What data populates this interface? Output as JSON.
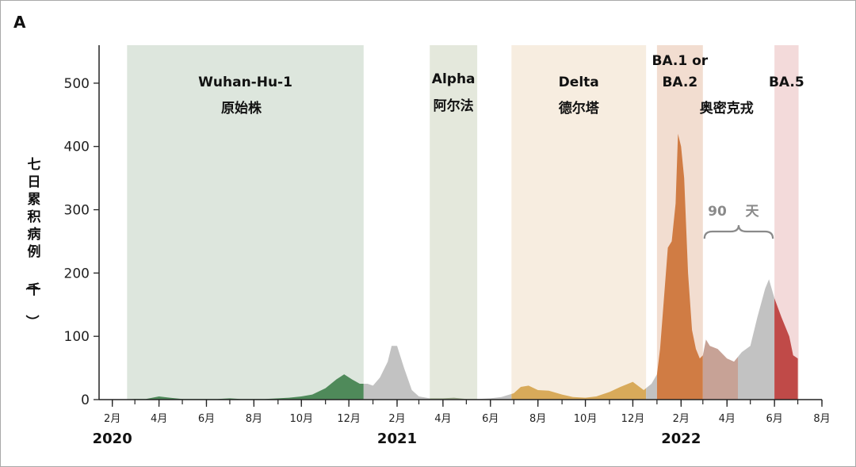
{
  "chart_data": {
    "type": "area",
    "panel_label": "A",
    "ylabel": "七日累积病例（千）",
    "ylim": [
      0,
      560
    ],
    "yticks": [
      0,
      100,
      200,
      300,
      400,
      500
    ],
    "x_unit": "month",
    "xlim": [
      "2020-01-15",
      "2022-08-01"
    ],
    "x_ticks": [
      {
        "date": "2020-02",
        "label": "2月"
      },
      {
        "date": "2020-04",
        "label": "4月"
      },
      {
        "date": "2020-06",
        "label": "6月"
      },
      {
        "date": "2020-08",
        "label": "8月"
      },
      {
        "date": "2020-10",
        "label": "10月"
      },
      {
        "date": "2020-12",
        "label": "12月"
      },
      {
        "date": "2021-02",
        "label": "2月"
      },
      {
        "date": "2021-04",
        "label": "4月"
      },
      {
        "date": "2021-06",
        "label": "6月"
      },
      {
        "date": "2021-08",
        "label": "8月"
      },
      {
        "date": "2021-10",
        "label": "10月"
      },
      {
        "date": "2021-12",
        "label": "12月"
      },
      {
        "date": "2022-02",
        "label": "2月"
      },
      {
        "date": "2022-04",
        "label": "4月"
      },
      {
        "date": "2022-06",
        "label": "6月"
      },
      {
        "date": "2022-08",
        "label": "8月"
      }
    ],
    "year_labels": [
      {
        "date": "2020-02",
        "label": "2020"
      },
      {
        "date": "2021-02",
        "label": "2021"
      },
      {
        "date": "2022-02",
        "label": "2022"
      }
    ],
    "periods": [
      {
        "name": "Wuhan-Hu-1",
        "name_cn": "原始株",
        "start": "2020-02-20",
        "end": "2020-12-20",
        "band_color": "#dde6dd",
        "fill_color": "#4f8a5a"
      },
      {
        "name": "Alpha",
        "name_cn": "阿尔法",
        "start": "2021-03-15",
        "end": "2021-05-15",
        "band_color": "#e4e8dc",
        "fill_color": "#9aa98a"
      },
      {
        "name": "Delta",
        "name_cn": "德尔塔",
        "start": "2021-06-28",
        "end": "2021-12-18",
        "band_color": "#f7ede0",
        "fill_color": "#d8aa5a"
      },
      {
        "name": "BA.1 or BA.2",
        "name_cn": "奥密克戎",
        "start": "2022-01-01",
        "end": "2022-03-01",
        "band_color": "#f2ddd0",
        "fill_color": "#d07c44"
      },
      {
        "name": "BA.5",
        "name_cn": "",
        "start": "2022-06-01",
        "end": "2022-07-02",
        "band_color": "#f3dada",
        "fill_color": "#c04a48"
      }
    ],
    "gap_fill_color": "#c2c2c2",
    "post_ba2_fill_color": "#c7a296",
    "post_ba2_segment": {
      "start": "2022-03-01",
      "end": "2022-04-15"
    },
    "annotation": {
      "number": "90",
      "unit": "天",
      "start": "2022-03-01",
      "end": "2022-06-01"
    },
    "series": [
      {
        "x": [
          "2020-01-15",
          "2020-02-15",
          "2020-03-01",
          "2020-03-15",
          "2020-04-01",
          "2020-04-15",
          "2020-05-01",
          "2020-05-15",
          "2020-06-01",
          "2020-06-15",
          "2020-07-01",
          "2020-07-15",
          "2020-08-01",
          "2020-08-15",
          "2020-09-01",
          "2020-09-15",
          "2020-10-01",
          "2020-10-15",
          "2020-11-01",
          "2020-11-15",
          "2020-11-25",
          "2020-12-05",
          "2020-12-15",
          "2020-12-25",
          "2021-01-01",
          "2021-01-10",
          "2021-01-20",
          "2021-01-25",
          "2021-02-01",
          "2021-02-10",
          "2021-02-20",
          "2021-03-01",
          "2021-03-15",
          "2021-04-01",
          "2021-04-15",
          "2021-05-01",
          "2021-05-15",
          "2021-06-01",
          "2021-06-15",
          "2021-07-01",
          "2021-07-10",
          "2021-07-20",
          "2021-08-01",
          "2021-08-15",
          "2021-09-01",
          "2021-09-15",
          "2021-10-01",
          "2021-10-15",
          "2021-11-01",
          "2021-11-15",
          "2021-12-01",
          "2021-12-15",
          "2021-12-25",
          "2022-01-01",
          "2022-01-05",
          "2022-01-10",
          "2022-01-15",
          "2022-01-20",
          "2022-01-25",
          "2022-01-28",
          "2022-02-01",
          "2022-02-05",
          "2022-02-10",
          "2022-02-15",
          "2022-02-20",
          "2022-02-25",
          "2022-03-01",
          "2022-03-05",
          "2022-03-10",
          "2022-03-20",
          "2022-04-01",
          "2022-04-10",
          "2022-04-20",
          "2022-05-01",
          "2022-05-10",
          "2022-05-20",
          "2022-05-25",
          "2022-06-01",
          "2022-06-10",
          "2022-06-20",
          "2022-06-25",
          "2022-07-01"
        ],
        "values": [
          0,
          0,
          1,
          1,
          5,
          3,
          1,
          1,
          1,
          1,
          2,
          1,
          1,
          1,
          2,
          3,
          5,
          8,
          18,
          32,
          40,
          32,
          25,
          25,
          22,
          35,
          60,
          85,
          85,
          50,
          15,
          5,
          2,
          2,
          3,
          1,
          1,
          2,
          4,
          10,
          20,
          22,
          15,
          14,
          8,
          4,
          3,
          5,
          12,
          20,
          28,
          15,
          25,
          40,
          80,
          160,
          240,
          250,
          310,
          420,
          400,
          350,
          200,
          110,
          80,
          65,
          70,
          95,
          85,
          80,
          65,
          60,
          75,
          85,
          130,
          175,
          190,
          160,
          130,
          100,
          70,
          65
        ]
      }
    ]
  }
}
